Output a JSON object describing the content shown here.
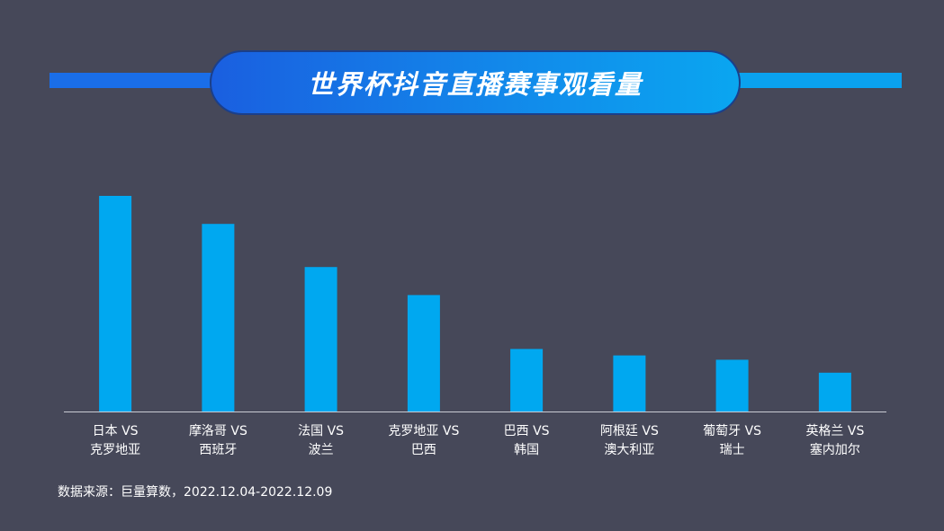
{
  "title": "世界杯抖音直播赛事观看量",
  "source": "数据来源：巨量算数，2022.12.04-2022.12.09",
  "colors": {
    "background": "#464859",
    "bar": "#00a8f0",
    "axis": "#c9cbd3",
    "text": "#ffffff"
  },
  "chart_data": {
    "type": "bar",
    "title": "世界杯抖音直播赛事观看量",
    "categories": [
      [
        "日本 VS",
        "克罗地亚"
      ],
      [
        "摩洛哥 VS",
        "西班牙"
      ],
      [
        "法国 VS",
        "波兰"
      ],
      [
        "克罗地亚 VS",
        "巴西"
      ],
      [
        "巴西 VS",
        "韩国"
      ],
      [
        "阿根廷 VS",
        "澳大利亚"
      ],
      [
        "葡萄牙 VS",
        "瑞士"
      ],
      [
        "英格兰 VS",
        "塞内加尔"
      ]
    ],
    "values": [
      100,
      87,
      67,
      54,
      29,
      26,
      24,
      18
    ],
    "ylim": [
      0,
      100
    ],
    "xlabel": "",
    "ylabel": "",
    "grid": false,
    "legend": "none"
  }
}
